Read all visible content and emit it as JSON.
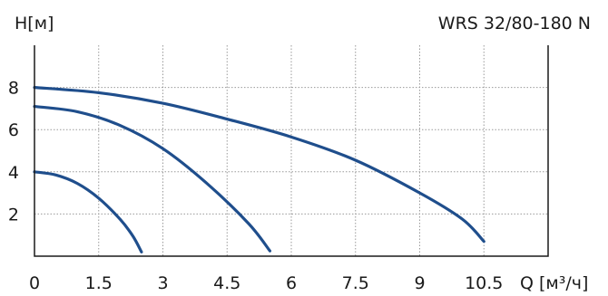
{
  "chart_data": {
    "type": "line",
    "title": "WRS 32/80-180 N",
    "ylabel": "H[м]",
    "xlabel": "Q [м³/ч]",
    "xlim": [
      0,
      12
    ],
    "ylim": [
      0,
      10
    ],
    "xticks": [
      0,
      1.5,
      3,
      4.5,
      6,
      7.5,
      9,
      10.5
    ],
    "xtick_labels": [
      "0",
      "1.5",
      "3",
      "4.5",
      "6",
      "7.5",
      "9",
      "10.5"
    ],
    "yticks": [
      2,
      4,
      6,
      8
    ],
    "ytick_labels": [
      "2",
      "4",
      "6",
      "8"
    ],
    "grid": true,
    "series": [
      {
        "color": "#1f4e8c",
        "x": [
          0,
          0.5,
          1.0,
          1.5,
          2.0,
          2.3,
          2.5
        ],
        "y": [
          4.0,
          3.85,
          3.45,
          2.75,
          1.75,
          0.95,
          0.2
        ]
      },
      {
        "color": "#1f4e8c",
        "x": [
          0,
          1.0,
          2.0,
          3.0,
          4.0,
          5.0,
          5.5
        ],
        "y": [
          7.1,
          6.85,
          6.2,
          5.1,
          3.5,
          1.55,
          0.25
        ]
      },
      {
        "color": "#1f4e8c",
        "x": [
          0,
          1.5,
          3.0,
          4.5,
          6.0,
          7.5,
          9.0,
          10.0,
          10.5
        ],
        "y": [
          8.0,
          7.75,
          7.25,
          6.5,
          5.65,
          4.55,
          3.0,
          1.75,
          0.7
        ]
      }
    ]
  }
}
